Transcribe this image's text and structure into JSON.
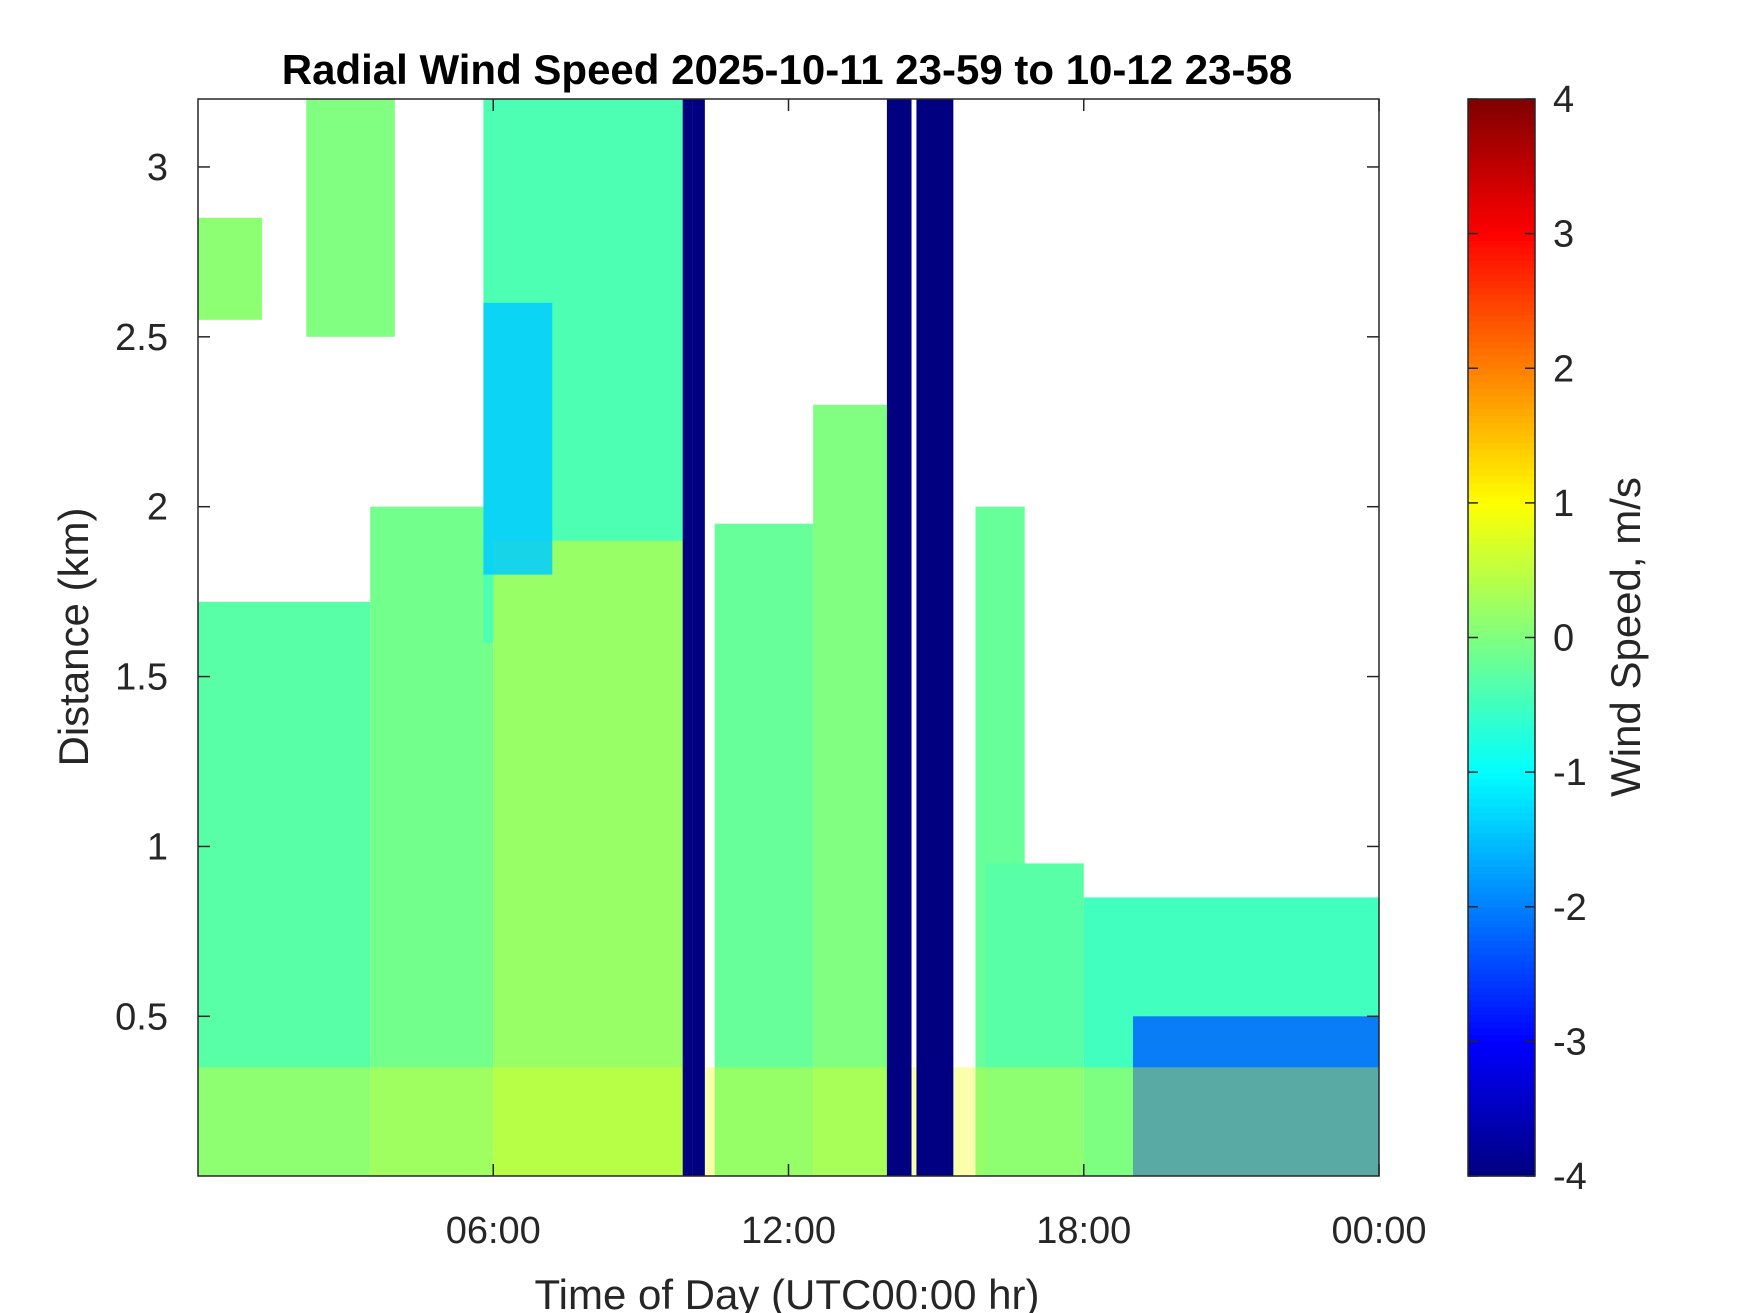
{
  "chart_data": {
    "type": "heatmap",
    "title": "Radial Wind Speed 2025-10-11 23-59 to 10-12 23-58",
    "xlabel": "Time of Day (UTC00:00 hr)",
    "ylabel": "Distance (km)",
    "x_ticks": [
      "06:00",
      "12:00",
      "18:00",
      "00:00"
    ],
    "x_tick_hours": [
      6,
      12,
      18,
      24
    ],
    "xlim_hours": [
      0,
      24
    ],
    "y_ticks": [
      "0.5",
      "1",
      "1.5",
      "2",
      "2.5",
      "3"
    ],
    "y_tick_values": [
      0.5,
      1,
      1.5,
      2,
      2.5,
      3
    ],
    "ylim_km": [
      0.03,
      3.2
    ],
    "colorbar": {
      "label": "Wind Speed, m/s",
      "ticks": [
        "-4",
        "-3",
        "-2",
        "-1",
        "0",
        "1",
        "2",
        "3",
        "4"
      ],
      "tick_values": [
        -4,
        -3,
        -2,
        -1,
        0,
        1,
        2,
        3,
        4
      ],
      "range": [
        -4,
        4
      ],
      "colormap": "jet"
    },
    "regions": [
      {
        "t0": 0.0,
        "t1": 3.5,
        "top_km": 1.72,
        "value": -0.3
      },
      {
        "t0": 0.0,
        "t1": 1.3,
        "top_km": 2.85,
        "bottom_km": 2.55,
        "value": 0.1
      },
      {
        "t0": 2.2,
        "t1": 4.0,
        "top_km": 3.2,
        "bottom_km": 2.5,
        "value": 0.0
      },
      {
        "t0": 3.5,
        "t1": 6.0,
        "top_km": 2.0,
        "value": -0.1
      },
      {
        "t0": 5.8,
        "t1": 10.0,
        "top_km": 3.2,
        "bottom_km": 1.6,
        "value": -0.4
      },
      {
        "t0": 6.0,
        "t1": 10.0,
        "top_km": 1.9,
        "value": 0.2
      },
      {
        "t0": 10.5,
        "t1": 12.5,
        "top_km": 1.95,
        "value": -0.2
      },
      {
        "t0": 12.5,
        "t1": 14.2,
        "top_km": 2.3,
        "value": 0.0
      },
      {
        "t0": 15.8,
        "t1": 16.8,
        "top_km": 2.0,
        "value": -0.2
      },
      {
        "t0": 16.0,
        "t1": 18.0,
        "top_km": 0.95,
        "value": -0.3
      },
      {
        "t0": 18.0,
        "t1": 24.0,
        "top_km": 0.85,
        "value": -0.5
      }
    ],
    "cool_patches": [
      {
        "t0": 5.8,
        "t1": 7.2,
        "top_km": 2.6,
        "bottom_km": 1.8,
        "value": -1.4
      },
      {
        "t0": 19.0,
        "t1": 24.0,
        "top_km": 0.5,
        "bottom_km": 0.03,
        "value": -2.2
      }
    ],
    "bands": [
      {
        "t0": 9.85,
        "t1": 10.05,
        "value": -4
      },
      {
        "t0": 10.05,
        "t1": 10.3,
        "value": -4
      },
      {
        "t0": 14.0,
        "t1": 14.5,
        "value": -4
      },
      {
        "t0": 14.6,
        "t1": 15.35,
        "value": -4
      }
    ],
    "surface_layer": {
      "top_km": 0.35,
      "value": 0.9
    }
  }
}
